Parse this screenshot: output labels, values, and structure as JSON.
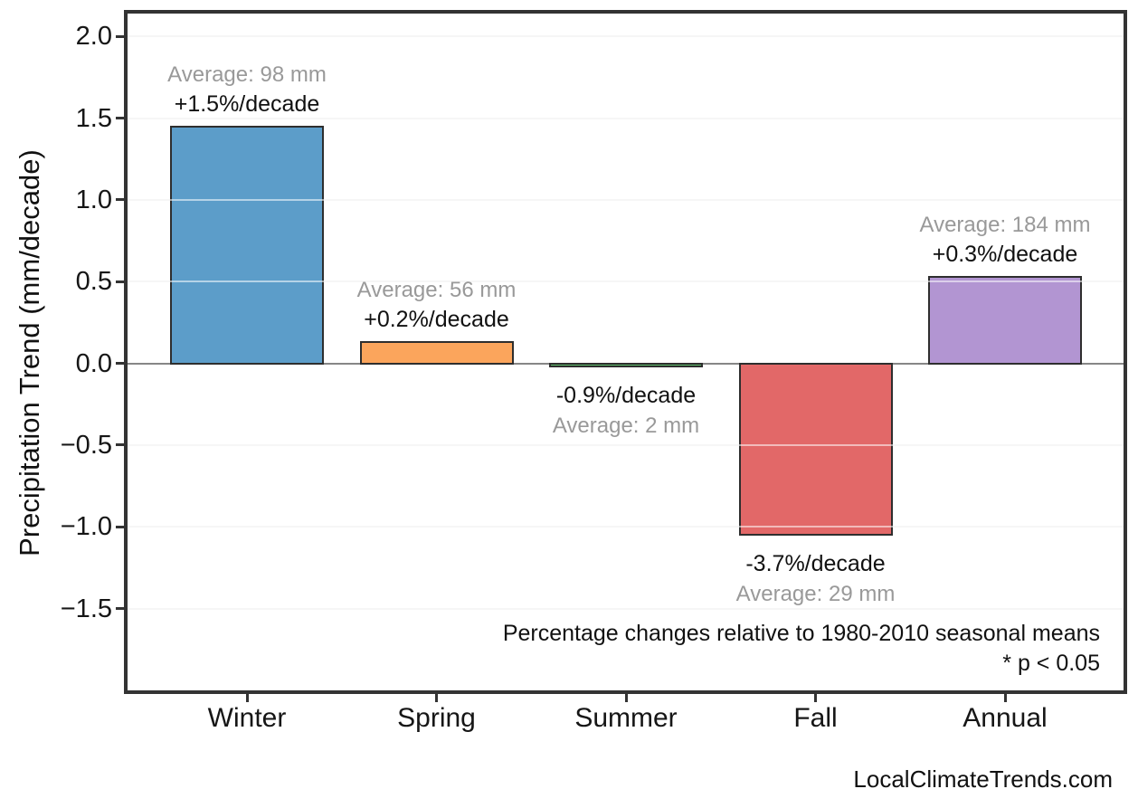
{
  "chart_data": {
    "type": "bar",
    "title": "",
    "categories": [
      "Winter",
      "Spring",
      "Summer",
      "Fall",
      "Annual"
    ],
    "values_mm_per_decade": [
      1.45,
      0.13,
      -0.02,
      -1.05,
      0.53
    ],
    "bar_colors": [
      "#5C9DC9",
      "#FBA55C",
      "#5FBE6B",
      "#E26868",
      "#B295D2"
    ],
    "bar_edge_color": "#2e2e2e",
    "annotations": [
      {
        "category": "Winter",
        "average": "Average: 98 mm",
        "trend": "+1.5%/decade",
        "position": "above"
      },
      {
        "category": "Spring",
        "average": "Average: 56 mm",
        "trend": "+0.2%/decade",
        "position": "above"
      },
      {
        "category": "Summer",
        "average": "Average: 2 mm",
        "trend": "-0.9%/decade",
        "position": "below"
      },
      {
        "category": "Fall",
        "average": "Average: 29 mm",
        "trend": "-3.7%/decade",
        "position": "below"
      },
      {
        "category": "Annual",
        "average": "Average: 184 mm",
        "trend": "+0.3%/decade",
        "position": "above"
      }
    ],
    "ylabel": "Precipitation Trend (mm/decade)",
    "xlabel": "",
    "yticks": [
      {
        "value": 2.0,
        "label": "2.0"
      },
      {
        "value": 1.5,
        "label": "1.5"
      },
      {
        "value": 1.0,
        "label": "1.0"
      },
      {
        "value": 0.5,
        "label": "0.5"
      },
      {
        "value": 0.0,
        "label": "0.0"
      },
      {
        "value": -0.5,
        "label": "−0.5"
      },
      {
        "value": -1.0,
        "label": "−1.0"
      },
      {
        "value": -1.5,
        "label": "−1.5"
      }
    ],
    "ylim": [
      -2.0,
      2.14
    ],
    "grid": true,
    "legend": "none",
    "caption_line1": "Percentage changes relative to 1980-2010 seasonal means",
    "caption_line2": "* p < 0.05",
    "footer": "LocalClimateTrends.com",
    "colors": {
      "annotation_gray": "#999999",
      "annotation_black": "#111111",
      "zero_line": "#868686",
      "gridline": "#ebebeb",
      "axis_border": "#333333",
      "background": "#ffffff"
    }
  }
}
